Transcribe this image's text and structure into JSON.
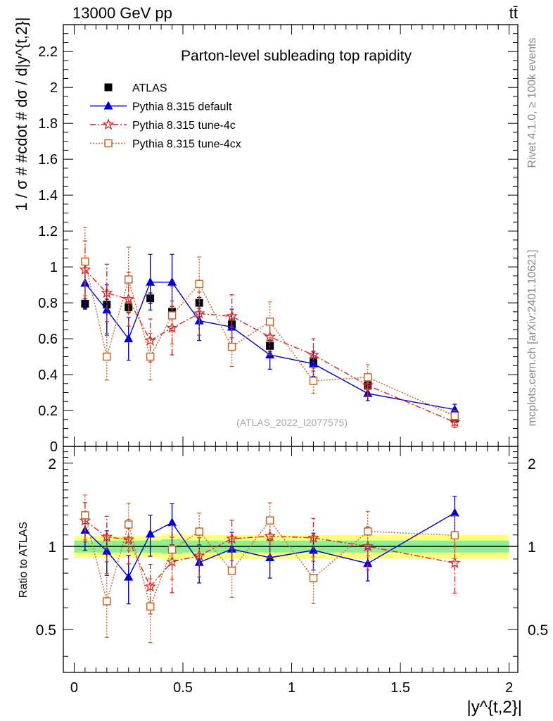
{
  "header": {
    "energy_label": "13000 GeV pp",
    "process_label": "tt̄",
    "side_label_top": "Rivet 4.1.0, ≥ 100k events",
    "side_label_bottom": "mcplots.cern.ch [arXiv:2401.10621]"
  },
  "chart_data": {
    "type": "scatter",
    "title": "Parton-level subleading top rapidity",
    "xlabel": "|y^{t,2}|",
    "ylabel": "1 / σ # #cdot # dσ / d|y^{t,2}|",
    "ratio_ylabel": "Ratio to ATLAS",
    "watermark": "(ATLAS_2022_I2077575)",
    "xlim": [
      -0.05,
      2.04
    ],
    "ylim": [
      0,
      2.35
    ],
    "ratio_ylim": [
      0.35,
      2.3
    ],
    "xticks": [
      0,
      0.5,
      1,
      1.5,
      2
    ],
    "xtick_labels": [
      "0",
      "0.5",
      "1",
      "1.5",
      "2"
    ],
    "yticks": [
      0,
      0.2,
      0.4,
      0.6,
      0.8,
      1,
      1.2,
      1.4,
      1.6,
      1.8,
      2,
      2.2
    ],
    "ytick_labels": [
      "0",
      "0.2",
      "0.4",
      "0.6",
      "0.8",
      "1",
      "1.2",
      "1.4",
      "1.6",
      "1.8",
      "2",
      "2.2"
    ],
    "ratio_yticks": [
      0.5,
      1,
      2
    ],
    "ratio_ytick_labels": [
      "0.5",
      "1",
      "2"
    ],
    "bin_edges": [
      0,
      0.1,
      0.2,
      0.3,
      0.4,
      0.5,
      0.65,
      0.8,
      1.0,
      1.2,
      1.5,
      2.0
    ],
    "series": [
      {
        "name": "ATLAS",
        "color": "#000000",
        "marker": "square",
        "x": [
          0.05,
          0.15,
          0.25,
          0.35,
          0.45,
          0.575,
          0.725,
          0.9,
          1.1,
          1.35,
          1.75
        ],
        "y": [
          0.795,
          0.79,
          0.775,
          0.825,
          0.75,
          0.8,
          0.68,
          0.56,
          0.475,
          0.34,
          0.155
        ],
        "yerr": [
          0.03,
          0.03,
          0.03,
          0.03,
          0.03,
          0.03,
          0.03,
          0.03,
          0.03,
          0.02,
          0.01
        ]
      },
      {
        "name": "Pythia 8.315 default",
        "color": "#0000cc",
        "marker": "triangle",
        "line": "solid",
        "x": [
          0.05,
          0.15,
          0.25,
          0.35,
          0.45,
          0.575,
          0.725,
          0.9,
          1.1,
          1.35,
          1.75
        ],
        "y": [
          0.91,
          0.76,
          0.6,
          0.915,
          0.915,
          0.7,
          0.665,
          0.51,
          0.46,
          0.295,
          0.205
        ],
        "yerr": [
          0.14,
          0.14,
          0.12,
          0.155,
          0.155,
          0.11,
          0.1,
          0.08,
          0.07,
          0.04,
          0.03
        ]
      },
      {
        "name": "Pythia 8.315 tune-4c",
        "color": "#dd2222",
        "marker": "star",
        "line": "dashdot",
        "x": [
          0.05,
          0.15,
          0.25,
          0.35,
          0.45,
          0.575,
          0.725,
          0.9,
          1.1,
          1.35,
          1.75
        ],
        "y": [
          0.985,
          0.855,
          0.82,
          0.59,
          0.66,
          0.74,
          0.725,
          0.61,
          0.51,
          0.34,
          0.135
        ],
        "yerr": [
          0.16,
          0.16,
          0.15,
          0.12,
          0.15,
          0.12,
          0.12,
          0.1,
          0.09,
          0.06,
          0.03
        ]
      },
      {
        "name": "Pythia 8.315 tune-4cx",
        "color": "#c8662a",
        "marker": "open-square",
        "line": "dotted",
        "x": [
          0.05,
          0.15,
          0.25,
          0.35,
          0.45,
          0.575,
          0.725,
          0.9,
          1.1,
          1.35,
          1.75
        ],
        "y": [
          1.03,
          0.5,
          0.93,
          0.5,
          0.73,
          0.905,
          0.555,
          0.695,
          0.365,
          0.385,
          0.17
        ],
        "yerr": [
          0.19,
          0.13,
          0.18,
          0.13,
          0.16,
          0.15,
          0.11,
          0.11,
          0.07,
          0.07,
          0.03
        ]
      }
    ],
    "ratio_band": {
      "inner_half": [
        0.05,
        0.05,
        0.05,
        0.05,
        0.06,
        0.05,
        0.05,
        0.05,
        0.05,
        0.05,
        0.05
      ],
      "outer_half": [
        0.09,
        0.09,
        0.09,
        0.09,
        0.11,
        0.1,
        0.1,
        0.1,
        0.1,
        0.1,
        0.1
      ]
    }
  }
}
